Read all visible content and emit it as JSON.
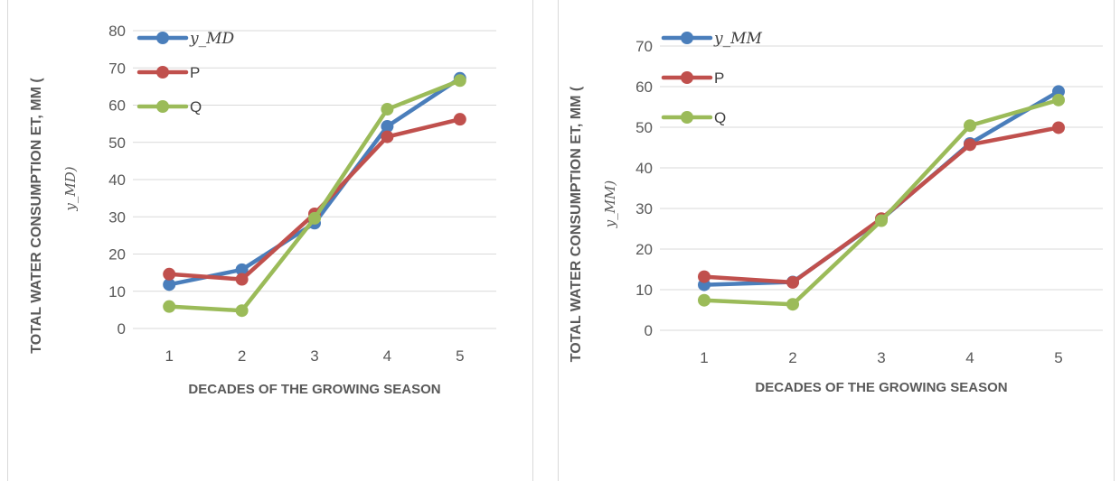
{
  "charts": [
    {
      "id": "left",
      "chart_data": {
        "type": "line",
        "categories": [
          "1",
          "2",
          "3",
          "4",
          "5"
        ],
        "series": [
          {
            "name": "𝑦_𝑀𝐷",
            "color": "#4a7ebb",
            "values": [
              11.8,
              15.8,
              28.3,
              54.3,
              67.2
            ]
          },
          {
            "name": "P",
            "color": "#c0504d",
            "values": [
              14.6,
              13.2,
              30.8,
              51.5,
              56.2
            ]
          },
          {
            "name": "Q",
            "color": "#9bbb59",
            "values": [
              5.9,
              4.8,
              29.6,
              58.9,
              66.6
            ]
          }
        ],
        "xlabel": "DECADES OF THE GROWING SEASON",
        "ylabel": "TOTAL WATER CONSUMPTION ET, MM (",
        "ylabel_line2": "𝑦_𝑀𝐷)",
        "ylim": [
          0,
          80
        ],
        "yticks": [
          "0",
          "10",
          "20",
          "30",
          "40",
          "50",
          "60",
          "70",
          "80"
        ],
        "grid": true,
        "legend": "top-left"
      }
    },
    {
      "id": "right",
      "chart_data": {
        "type": "line",
        "categories": [
          "1",
          "2",
          "3",
          "4",
          "5"
        ],
        "series": [
          {
            "name": "𝑦_𝑀M",
            "color": "#4a7ebb",
            "values": [
              11.2,
              11.9,
              27.3,
              46.0,
              58.8
            ]
          },
          {
            "name": "P",
            "color": "#c0504d",
            "values": [
              13.2,
              11.8,
              27.5,
              45.7,
              49.9
            ]
          },
          {
            "name": "Q",
            "color": "#9bbb59",
            "values": [
              7.4,
              6.4,
              27.0,
              50.4,
              56.7
            ]
          }
        ],
        "xlabel": "DECADES OF THE GROWING SEASON",
        "ylabel": "TOTAL WATER CONSUMPTION ET, MM (",
        "ylabel_line2": "𝑦_𝑀M)",
        "ylim": [
          0,
          70
        ],
        "yticks": [
          "0",
          "10",
          "20",
          "30",
          "40",
          "50",
          "60",
          "70"
        ],
        "grid": true,
        "legend": "top-left"
      }
    }
  ]
}
